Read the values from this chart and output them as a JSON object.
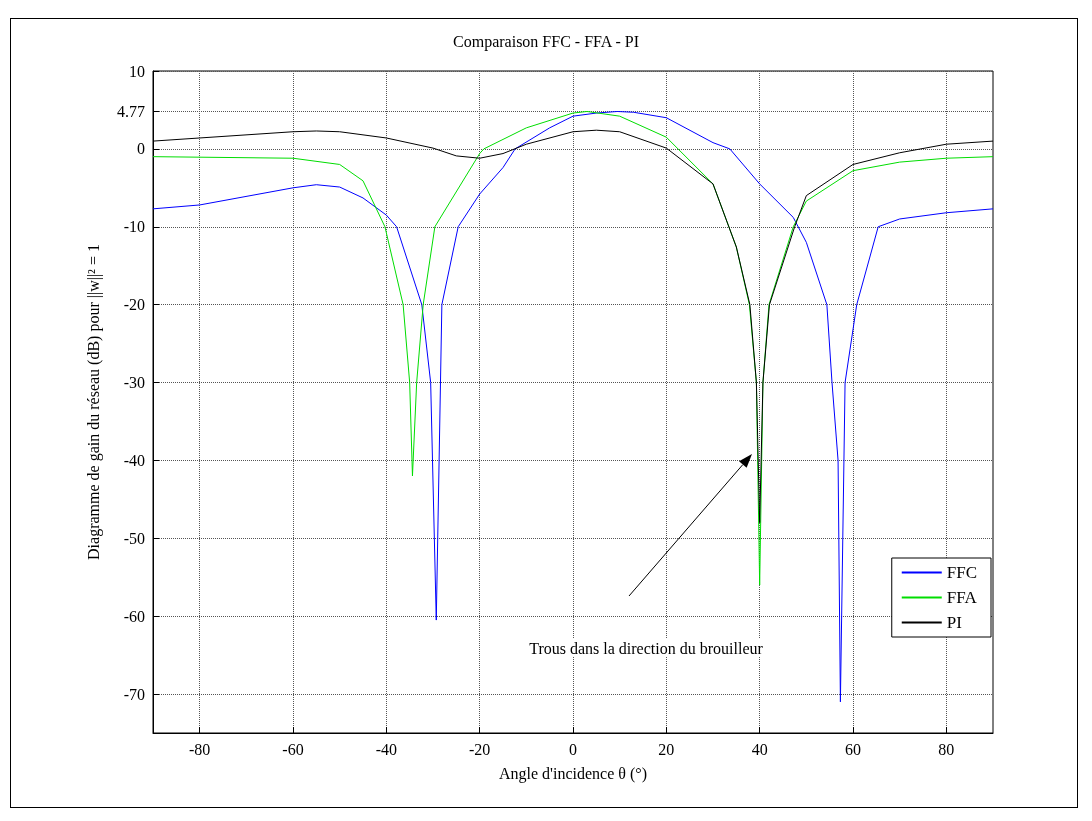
{
  "chart_data": {
    "type": "line",
    "title": "Comparaison FFC - FFA - PI",
    "xlabel": "Angle d'incidence θ (°)",
    "ylabel": "Diagramme de gain du réseau (dB) pour ||w||² = 1",
    "annotations": [
      "Trous dans la direction du brouilleur"
    ],
    "series": [
      {
        "name": "FFC",
        "color": "#0000ff",
        "x": [
          -90,
          -80,
          -60,
          -55,
          -50,
          -45,
          -40,
          -37.8,
          -32.4,
          -30.5,
          -29.3,
          -28.1,
          -24.6,
          -20,
          -15,
          -12.4,
          -5,
          0,
          5,
          9.5,
          13,
          20,
          30,
          33.6,
          40,
          47.2,
          50,
          54.4,
          55.5,
          56.8,
          57.3,
          58.3,
          60.8,
          65.4,
          70,
          80,
          90
        ],
        "values": [
          -7.7,
          -7.2,
          -5.0,
          -4.6,
          -4.9,
          -6.3,
          -8.5,
          -10,
          -20,
          -30,
          -60.5,
          -20,
          -10,
          -5.8,
          -2.4,
          0,
          2.7,
          4.2,
          4.6,
          4.8,
          4.7,
          4.0,
          0.8,
          0,
          -4.5,
          -8.8,
          -12,
          -20,
          -30,
          -40,
          -71,
          -30,
          -20,
          -10,
          -9.0,
          -8.2,
          -7.7
        ]
      },
      {
        "name": "FFA",
        "color": "#00dd00",
        "x": [
          -90,
          -60,
          -50,
          -45,
          -40.3,
          -36.4,
          -35,
          -34.4,
          -33.5,
          -32.1,
          -29.6,
          -20,
          -19.1,
          -10,
          0,
          3,
          10,
          20,
          30,
          35,
          37.8,
          39.3,
          40,
          40.7,
          42,
          47.2,
          50,
          60,
          70,
          80,
          90
        ],
        "values": [
          -1.0,
          -1.2,
          -2.0,
          -4.1,
          -10,
          -20,
          -30,
          -42,
          -30,
          -20,
          -10,
          -0.6,
          0,
          2.7,
          4.6,
          4.8,
          4.2,
          1.5,
          -4.5,
          -12.6,
          -20,
          -30,
          -56,
          -30,
          -20,
          -10,
          -6.7,
          -2.8,
          -1.7,
          -1.2,
          -1.0
        ]
      },
      {
        "name": "PI",
        "color": "#000000",
        "x": [
          -90,
          -80,
          -60,
          -55,
          -50,
          -40,
          -30,
          -25,
          -20,
          -15,
          -10,
          0,
          5,
          10,
          20,
          30,
          35,
          37.9,
          39.3,
          40,
          40.7,
          42.1,
          47.5,
          50,
          60,
          70,
          80,
          90
        ],
        "values": [
          1.0,
          1.4,
          2.2,
          2.3,
          2.2,
          1.4,
          0.1,
          -0.9,
          -1.2,
          -0.6,
          0.6,
          2.2,
          2.4,
          2.2,
          0.1,
          -4.5,
          -12.6,
          -20,
          -30,
          -48,
          -30,
          -20,
          -10,
          -6.0,
          -2.0,
          -0.5,
          0.6,
          1.0
        ]
      }
    ],
    "xlim": [
      -90,
      90
    ],
    "xticks": [
      -80,
      -60,
      -40,
      -20,
      0,
      20,
      40,
      60,
      80
    ],
    "ylim": [
      -75,
      10
    ],
    "yticks": [
      -70,
      -60,
      -50,
      -40,
      -30,
      -20,
      -10,
      0,
      4.77,
      10
    ],
    "grid": true,
    "legend": "bottom right",
    "marker": "none",
    "line_style": "solid"
  }
}
